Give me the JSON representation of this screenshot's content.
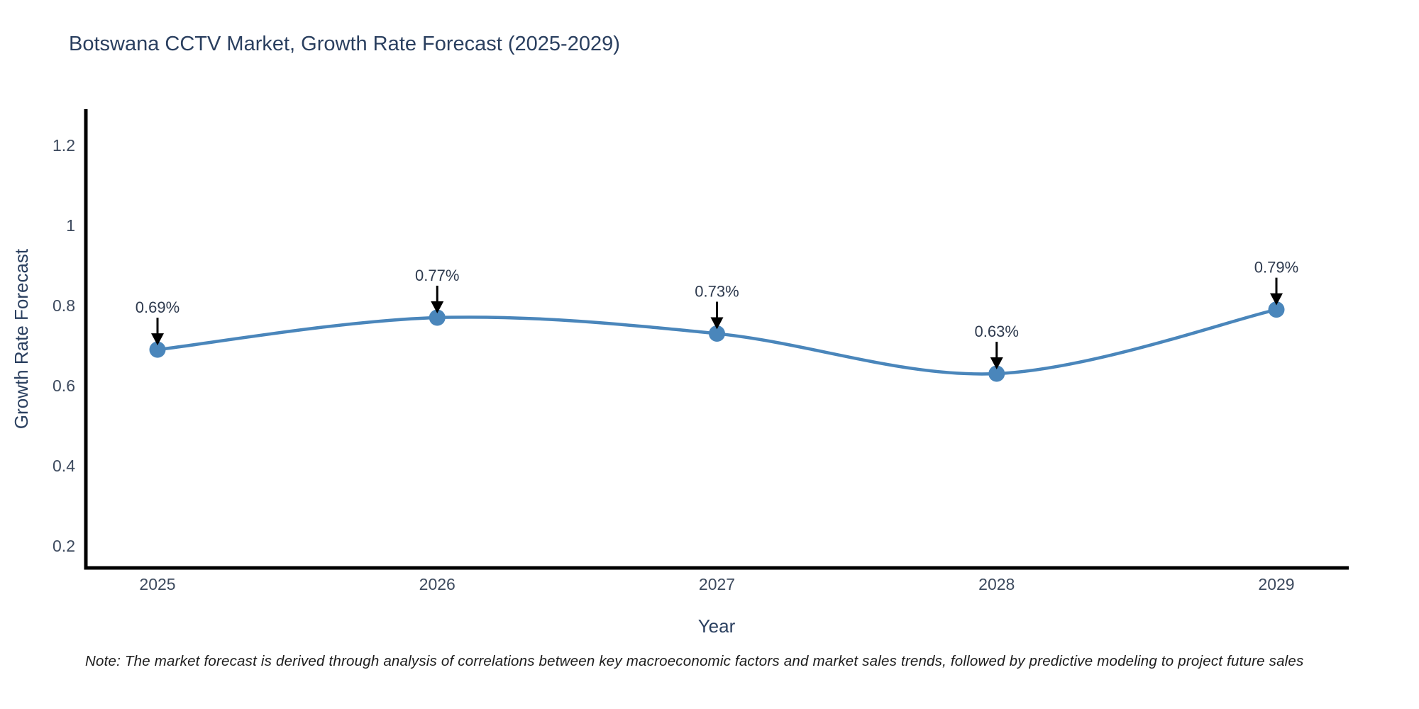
{
  "page": {
    "background": "#ffffff"
  },
  "chart_data": {
    "type": "line",
    "line_shape": "spline",
    "title": "Botswana CCTV Market, Growth Rate Forecast (2025-2029)",
    "xlabel": "Year",
    "ylabel": "Growth Rate Forecast",
    "categories": [
      "2025",
      "2026",
      "2027",
      "2028",
      "2029"
    ],
    "values": [
      0.69,
      0.77,
      0.73,
      0.63,
      0.79
    ],
    "point_labels": [
      "0.69%",
      "0.77%",
      "0.73%",
      "0.63%",
      "0.79%"
    ],
    "yticks": [
      {
        "value": 0.2,
        "label": "0.2"
      },
      {
        "value": 0.4,
        "label": "0.4"
      },
      {
        "value": 0.6,
        "label": "0.6"
      },
      {
        "value": 0.8,
        "label": "0.8"
      },
      {
        "value": 1.0,
        "label": "1"
      },
      {
        "value": 1.2,
        "label": "1.2"
      }
    ],
    "ylim": [
      0.14,
      1.28
    ],
    "grid": false,
    "legend": "none",
    "colors": {
      "line": "#4a86bb",
      "marker": "#4a86bb",
      "axis": "#000000",
      "annotation_arrow": "#000000",
      "annotation_text": "#2e3a4e",
      "tick_text": "#3d4a5e",
      "title_text": "#2a3f5f"
    }
  },
  "footer": {
    "note": "Note: The market forecast is derived through analysis of correlations between key macroeconomic factors and market sales trends, followed by predictive modeling to project future sales"
  }
}
